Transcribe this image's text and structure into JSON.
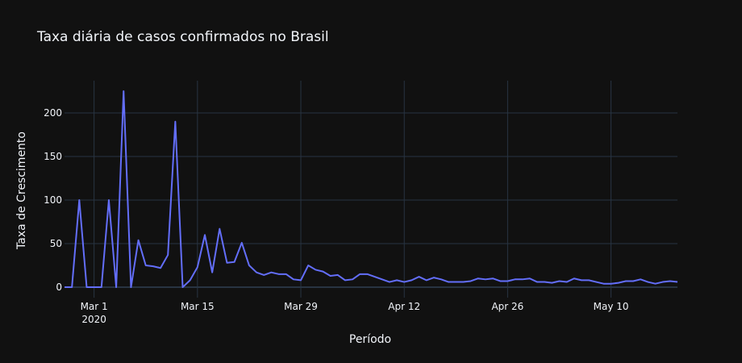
{
  "chart_data": {
    "type": "line",
    "title": "Taxa diária de casos confirmados no Brasil",
    "xlabel": "Período",
    "ylabel": "Taxa de Crescimento",
    "x_start": "2020-02-26",
    "x_end": "2020-05-19",
    "xlim": [
      "2020-02-26",
      "2020-05-19"
    ],
    "ylim": [
      -12,
      237
    ],
    "grid": true,
    "line_color": "#636efa",
    "x_ticks": [
      {
        "date": "2020-03-01",
        "label": "Mar 1",
        "sublabel": "2020"
      },
      {
        "date": "2020-03-15",
        "label": "Mar 15"
      },
      {
        "date": "2020-03-29",
        "label": "Mar 29"
      },
      {
        "date": "2020-04-12",
        "label": "Apr 12"
      },
      {
        "date": "2020-04-26",
        "label": "Apr 26"
      },
      {
        "date": "2020-05-10",
        "label": "May 10"
      }
    ],
    "y_ticks": [
      0,
      50,
      100,
      150,
      200
    ],
    "series": [
      {
        "name": "",
        "x": [
          "2020-02-26",
          "2020-02-27",
          "2020-02-28",
          "2020-02-29",
          "2020-03-01",
          "2020-03-02",
          "2020-03-03",
          "2020-03-04",
          "2020-03-05",
          "2020-03-06",
          "2020-03-07",
          "2020-03-08",
          "2020-03-09",
          "2020-03-10",
          "2020-03-11",
          "2020-03-12",
          "2020-03-13",
          "2020-03-14",
          "2020-03-15",
          "2020-03-16",
          "2020-03-17",
          "2020-03-18",
          "2020-03-19",
          "2020-03-20",
          "2020-03-21",
          "2020-03-22",
          "2020-03-23",
          "2020-03-24",
          "2020-03-25",
          "2020-03-26",
          "2020-03-27",
          "2020-03-28",
          "2020-03-29",
          "2020-03-30",
          "2020-03-31",
          "2020-04-01",
          "2020-04-02",
          "2020-04-03",
          "2020-04-04",
          "2020-04-05",
          "2020-04-06",
          "2020-04-07",
          "2020-04-08",
          "2020-04-09",
          "2020-04-10",
          "2020-04-11",
          "2020-04-12",
          "2020-04-13",
          "2020-04-14",
          "2020-04-15",
          "2020-04-16",
          "2020-04-17",
          "2020-04-18",
          "2020-04-19",
          "2020-04-20",
          "2020-04-21",
          "2020-04-22",
          "2020-04-23",
          "2020-04-24",
          "2020-04-25",
          "2020-04-26",
          "2020-04-27",
          "2020-04-28",
          "2020-04-29",
          "2020-04-30",
          "2020-05-01",
          "2020-05-02",
          "2020-05-03",
          "2020-05-04",
          "2020-05-05",
          "2020-05-06",
          "2020-05-07",
          "2020-05-08",
          "2020-05-09",
          "2020-05-10",
          "2020-05-11",
          "2020-05-12",
          "2020-05-13",
          "2020-05-14",
          "2020-05-15",
          "2020-05-16",
          "2020-05-17",
          "2020-05-18",
          "2020-05-19"
        ],
        "values": [
          0,
          0,
          100,
          0,
          0,
          0,
          100,
          0,
          225,
          0,
          54,
          25,
          24,
          22,
          37,
          190,
          0,
          8,
          23,
          60,
          17,
          67,
          28,
          29,
          51,
          25,
          17,
          14,
          17,
          15,
          15,
          9,
          8,
          25,
          20,
          18,
          13,
          14,
          8,
          9,
          15,
          15,
          12,
          9,
          6,
          8,
          6,
          8,
          12,
          8,
          11,
          9,
          6,
          6,
          6,
          7,
          10,
          9,
          10,
          7,
          7,
          9,
          9,
          10,
          6,
          6,
          5,
          7,
          6,
          10,
          8,
          8,
          6,
          4,
          4,
          5,
          7,
          7,
          9,
          6,
          4,
          6,
          7,
          6
        ]
      }
    ]
  }
}
